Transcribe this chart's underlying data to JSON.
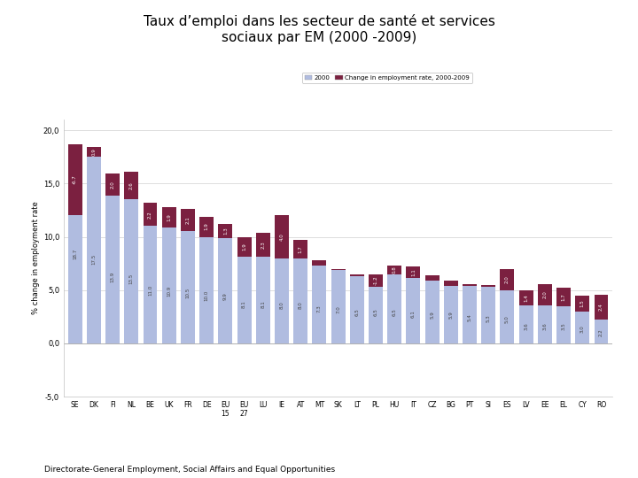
{
  "title": "Taux d’emploi dans les secteur de santé et services\nsociaux par EM (2000 -2009)",
  "ylabel": "% change in employment rate",
  "legend_labels": [
    "2000",
    "Change in employment rate, 2000-2009"
  ],
  "bar_color_base": "#b0bce0",
  "bar_color_change": "#7b2040",
  "ylim": [
    -5.0,
    21.0
  ],
  "yticks": [
    -5.0,
    0.0,
    5.0,
    10.0,
    15.0,
    20.0
  ],
  "countries": [
    "SE",
    "DK",
    "FI",
    "NL",
    "BE",
    "UK",
    "FR",
    "DE",
    "EU\n15",
    "EU\n27",
    "LU",
    "IE",
    "AT",
    "MT",
    "SK",
    "LT",
    "PL",
    "HU",
    "IT",
    "CZ",
    "BG",
    "PT",
    "SI",
    "ES",
    "LV",
    "EE",
    "EL",
    "CY",
    "RO"
  ],
  "base_2000": [
    18.7,
    17.5,
    13.9,
    13.5,
    11.0,
    10.9,
    10.5,
    10.0,
    9.9,
    8.1,
    8.1,
    8.0,
    8.0,
    7.3,
    7.0,
    6.5,
    6.5,
    6.5,
    6.1,
    5.9,
    5.9,
    5.4,
    5.3,
    5.0,
    3.6,
    3.6,
    3.5,
    3.0,
    2.2
  ],
  "change_2000_2009": [
    -6.7,
    0.9,
    2.0,
    2.6,
    2.2,
    1.9,
    2.1,
    1.9,
    1.3,
    1.9,
    2.3,
    4.0,
    1.7,
    0.5,
    -0.1,
    -0.2,
    -1.2,
    0.8,
    1.1,
    0.5,
    -0.5,
    0.2,
    0.2,
    2.0,
    1.4,
    2.0,
    1.7,
    1.5,
    2.4
  ],
  "footnote": "Directorate-General Employment, Social Affairs and Equal Opportunities"
}
